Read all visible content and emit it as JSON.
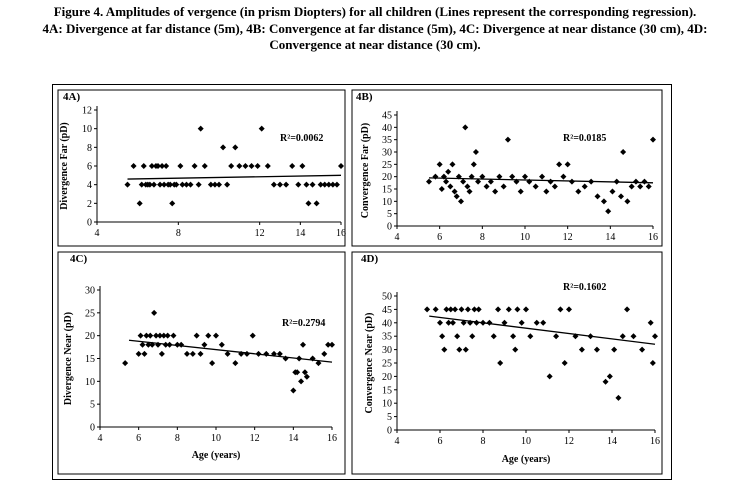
{
  "caption": {
    "line1": "Figure 4. Amplitudes of vergence (in prism Diopters) for all children (Lines represent the corresponding regression).",
    "line2": "4A: Divergence at far distance (5m), 4B: Convergence at far distance (5m), 4C: Divergence at near distance (30 cm), 4D:",
    "line3": "Convergence at near distance (30 cm)."
  },
  "chart_data": [
    {
      "panel": "4A)",
      "type": "scatter",
      "xlabel": "",
      "ylabel": "Divergence Far (pD)",
      "xlim": [
        4,
        16
      ],
      "ylim": [
        0,
        12
      ],
      "xticks": [
        4,
        8,
        12,
        14,
        16
      ],
      "yticks": [
        0,
        2,
        4,
        6,
        8,
        10,
        12
      ],
      "annotation": "R²=0.0062",
      "regression": [
        [
          5.5,
          4.6
        ],
        [
          16,
          5.0
        ]
      ],
      "points": [
        [
          5.5,
          4
        ],
        [
          5.8,
          6
        ],
        [
          6.1,
          2
        ],
        [
          6.2,
          4
        ],
        [
          6.3,
          6
        ],
        [
          6.4,
          4
        ],
        [
          6.5,
          4
        ],
        [
          6.6,
          4
        ],
        [
          6.7,
          6
        ],
        [
          6.8,
          4
        ],
        [
          6.9,
          6
        ],
        [
          7.0,
          6
        ],
        [
          7.1,
          4
        ],
        [
          7.2,
          6
        ],
        [
          7.3,
          4
        ],
        [
          7.4,
          6
        ],
        [
          7.5,
          4
        ],
        [
          7.6,
          4
        ],
        [
          7.7,
          2
        ],
        [
          7.8,
          4
        ],
        [
          7.9,
          4
        ],
        [
          8.1,
          6
        ],
        [
          8.2,
          4
        ],
        [
          8.4,
          4
        ],
        [
          8.6,
          4
        ],
        [
          8.8,
          6
        ],
        [
          9.0,
          4
        ],
        [
          9.1,
          10
        ],
        [
          9.3,
          6
        ],
        [
          9.6,
          4
        ],
        [
          9.8,
          4
        ],
        [
          10.0,
          4
        ],
        [
          10.2,
          8
        ],
        [
          10.4,
          4
        ],
        [
          10.6,
          6
        ],
        [
          10.8,
          8
        ],
        [
          11.0,
          6
        ],
        [
          11.3,
          6
        ],
        [
          11.6,
          6
        ],
        [
          11.9,
          6
        ],
        [
          12.1,
          10
        ],
        [
          12.4,
          6
        ],
        [
          12.7,
          4
        ],
        [
          13.0,
          4
        ],
        [
          13.3,
          4
        ],
        [
          13.6,
          6
        ],
        [
          13.9,
          4
        ],
        [
          14.1,
          6
        ],
        [
          14.3,
          4
        ],
        [
          14.4,
          2
        ],
        [
          14.6,
          4
        ],
        [
          14.8,
          2
        ],
        [
          15.0,
          4
        ],
        [
          15.2,
          4
        ],
        [
          15.4,
          4
        ],
        [
          15.6,
          4
        ],
        [
          15.8,
          4
        ],
        [
          16.0,
          6
        ]
      ]
    },
    {
      "panel": "4B)",
      "type": "scatter",
      "xlabel": "",
      "ylabel": "Convergence Far (pD)",
      "xlim": [
        4,
        16
      ],
      "ylim": [
        0,
        45
      ],
      "xticks": [
        4,
        6,
        8,
        10,
        12,
        14,
        16
      ],
      "yticks": [
        0,
        5,
        10,
        15,
        20,
        25,
        30,
        35,
        40,
        45
      ],
      "annotation": "R²=0.0185",
      "regression": [
        [
          5.5,
          19.5
        ],
        [
          16,
          17.5
        ]
      ],
      "points": [
        [
          5.5,
          18
        ],
        [
          5.8,
          20
        ],
        [
          6.0,
          25
        ],
        [
          6.1,
          15
        ],
        [
          6.2,
          20
        ],
        [
          6.3,
          18
        ],
        [
          6.4,
          22
        ],
        [
          6.5,
          16
        ],
        [
          6.6,
          25
        ],
        [
          6.7,
          14
        ],
        [
          6.8,
          12
        ],
        [
          6.9,
          20
        ],
        [
          7.0,
          10
        ],
        [
          7.1,
          18
        ],
        [
          7.2,
          40
        ],
        [
          7.3,
          16
        ],
        [
          7.4,
          14
        ],
        [
          7.5,
          20
        ],
        [
          7.6,
          25
        ],
        [
          7.7,
          30
        ],
        [
          7.8,
          18
        ],
        [
          8.0,
          20
        ],
        [
          8.2,
          16
        ],
        [
          8.4,
          18
        ],
        [
          8.6,
          14
        ],
        [
          8.8,
          20
        ],
        [
          9.0,
          16
        ],
        [
          9.2,
          35
        ],
        [
          9.4,
          20
        ],
        [
          9.6,
          18
        ],
        [
          9.8,
          14
        ],
        [
          10.0,
          20
        ],
        [
          10.2,
          18
        ],
        [
          10.5,
          16
        ],
        [
          10.8,
          20
        ],
        [
          11.0,
          14
        ],
        [
          11.2,
          18
        ],
        [
          11.4,
          16
        ],
        [
          11.6,
          25
        ],
        [
          11.8,
          20
        ],
        [
          12.0,
          25
        ],
        [
          12.2,
          18
        ],
        [
          12.5,
          14
        ],
        [
          12.8,
          16
        ],
        [
          13.1,
          18
        ],
        [
          13.4,
          12
        ],
        [
          13.7,
          10
        ],
        [
          13.9,
          6
        ],
        [
          14.1,
          14
        ],
        [
          14.3,
          18
        ],
        [
          14.5,
          12
        ],
        [
          14.6,
          30
        ],
        [
          14.8,
          10
        ],
        [
          15.0,
          16
        ],
        [
          15.2,
          18
        ],
        [
          15.4,
          16
        ],
        [
          15.6,
          18
        ],
        [
          15.8,
          16
        ],
        [
          16.0,
          35
        ]
      ]
    },
    {
      "panel": "4C)",
      "type": "scatter",
      "xlabel": "Age (years)",
      "ylabel": "Divergence Near (pD)",
      "xlim": [
        4,
        16
      ],
      "ylim": [
        0,
        30
      ],
      "xticks": [
        4,
        6,
        8,
        10,
        12,
        14,
        16
      ],
      "yticks": [
        0,
        5,
        10,
        15,
        20,
        25,
        30
      ],
      "annotation": "R²=0.2794",
      "regression": [
        [
          5.5,
          19.0
        ],
        [
          16,
          14.2
        ]
      ],
      "points": [
        [
          5.3,
          14
        ],
        [
          6.0,
          16
        ],
        [
          6.1,
          20
        ],
        [
          6.2,
          18
        ],
        [
          6.3,
          16
        ],
        [
          6.4,
          20
        ],
        [
          6.5,
          18
        ],
        [
          6.6,
          20
        ],
        [
          6.7,
          18
        ],
        [
          6.8,
          25
        ],
        [
          6.9,
          20
        ],
        [
          7.0,
          18
        ],
        [
          7.1,
          20
        ],
        [
          7.2,
          16
        ],
        [
          7.3,
          20
        ],
        [
          7.4,
          18
        ],
        [
          7.5,
          20
        ],
        [
          7.6,
          18
        ],
        [
          7.8,
          20
        ],
        [
          8.0,
          18
        ],
        [
          8.2,
          18
        ],
        [
          8.5,
          16
        ],
        [
          8.8,
          16
        ],
        [
          9.0,
          20
        ],
        [
          9.2,
          16
        ],
        [
          9.4,
          18
        ],
        [
          9.6,
          20
        ],
        [
          9.8,
          14
        ],
        [
          10.0,
          20
        ],
        [
          10.3,
          18
        ],
        [
          10.6,
          16
        ],
        [
          11.0,
          14
        ],
        [
          11.3,
          16
        ],
        [
          11.6,
          16
        ],
        [
          11.9,
          20
        ],
        [
          12.2,
          16
        ],
        [
          12.6,
          16
        ],
        [
          13.0,
          16
        ],
        [
          13.3,
          16
        ],
        [
          13.6,
          15
        ],
        [
          14.0,
          8
        ],
        [
          14.1,
          12
        ],
        [
          14.2,
          12
        ],
        [
          14.3,
          15
        ],
        [
          14.4,
          10
        ],
        [
          14.5,
          18
        ],
        [
          14.6,
          12
        ],
        [
          14.7,
          11
        ],
        [
          15.0,
          15
        ],
        [
          15.3,
          14
        ],
        [
          15.6,
          16
        ],
        [
          15.8,
          18
        ],
        [
          16.0,
          18
        ]
      ]
    },
    {
      "panel": "4D)",
      "type": "scatter",
      "xlabel": "Age (years)",
      "ylabel": "Convergence Near (pD)",
      "xlim": [
        4,
        16
      ],
      "ylim": [
        0,
        50
      ],
      "xticks": [
        4,
        6,
        8,
        10,
        12,
        14,
        16
      ],
      "yticks": [
        0,
        5,
        10,
        15,
        20,
        25,
        30,
        35,
        40,
        45,
        50
      ],
      "annotation": "R²=0.1602",
      "regression": [
        [
          5.5,
          42.5
        ],
        [
          16,
          32.0
        ]
      ],
      "points": [
        [
          5.4,
          45
        ],
        [
          5.8,
          45
        ],
        [
          6.0,
          40
        ],
        [
          6.1,
          35
        ],
        [
          6.2,
          30
        ],
        [
          6.3,
          45
        ],
        [
          6.4,
          40
        ],
        [
          6.5,
          45
        ],
        [
          6.6,
          40
        ],
        [
          6.7,
          45
        ],
        [
          6.8,
          35
        ],
        [
          6.9,
          30
        ],
        [
          7.0,
          45
        ],
        [
          7.1,
          40
        ],
        [
          7.2,
          30
        ],
        [
          7.3,
          45
        ],
        [
          7.4,
          40
        ],
        [
          7.5,
          35
        ],
        [
          7.6,
          45
        ],
        [
          7.7,
          40
        ],
        [
          7.8,
          45
        ],
        [
          8.0,
          40
        ],
        [
          8.3,
          40
        ],
        [
          8.5,
          35
        ],
        [
          8.7,
          45
        ],
        [
          8.8,
          25
        ],
        [
          9.0,
          40
        ],
        [
          9.2,
          45
        ],
        [
          9.4,
          35
        ],
        [
          9.5,
          30
        ],
        [
          9.6,
          45
        ],
        [
          9.8,
          40
        ],
        [
          10.0,
          45
        ],
        [
          10.2,
          35
        ],
        [
          10.5,
          40
        ],
        [
          10.8,
          40
        ],
        [
          11.1,
          20
        ],
        [
          11.4,
          35
        ],
        [
          11.6,
          45
        ],
        [
          11.8,
          25
        ],
        [
          12.0,
          45
        ],
        [
          12.3,
          35
        ],
        [
          12.6,
          30
        ],
        [
          13.0,
          35
        ],
        [
          13.3,
          30
        ],
        [
          13.7,
          18
        ],
        [
          13.9,
          20
        ],
        [
          14.1,
          30
        ],
        [
          14.3,
          12
        ],
        [
          14.5,
          35
        ],
        [
          14.7,
          45
        ],
        [
          15.0,
          35
        ],
        [
          15.4,
          30
        ],
        [
          15.8,
          40
        ],
        [
          15.9,
          25
        ],
        [
          16.0,
          35
        ]
      ]
    }
  ]
}
